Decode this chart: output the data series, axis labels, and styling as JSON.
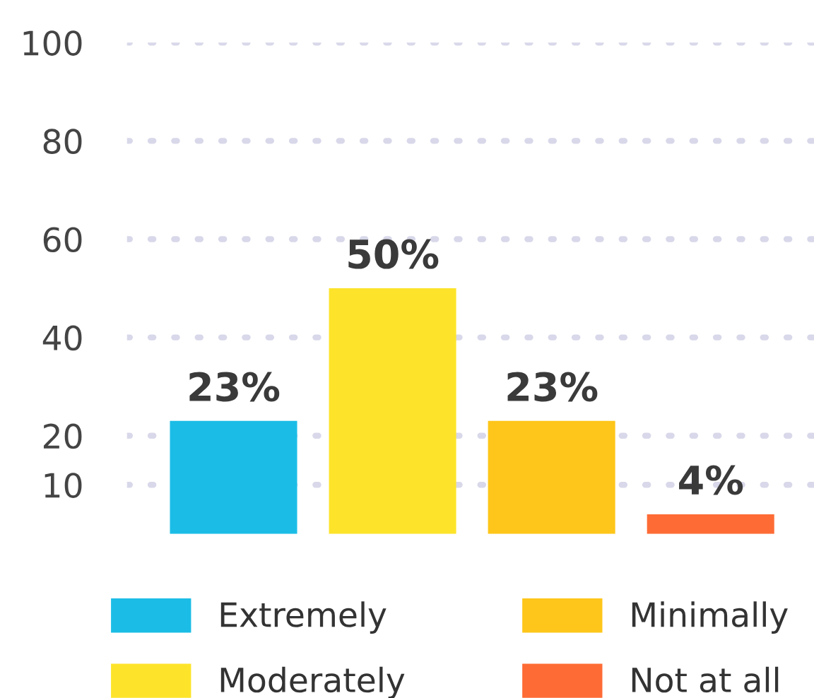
{
  "chart_data": {
    "type": "bar",
    "categories": [
      null,
      null,
      null,
      null
    ],
    "series": [
      {
        "name": "Extremely",
        "color": "#1bbde6",
        "values": [
          23,
          null,
          null,
          null
        ],
        "value_labels": [
          "23%",
          null,
          null,
          null
        ]
      },
      {
        "name": "Moderately",
        "color": "#fde42a",
        "values": [
          null,
          50,
          null,
          null
        ],
        "value_labels": [
          null,
          "50%",
          null,
          null
        ]
      },
      {
        "name": "Minimally",
        "color": "#fec61a",
        "values": [
          null,
          null,
          23,
          null
        ],
        "value_labels": [
          null,
          null,
          "23%",
          null
        ]
      },
      {
        "name": "Not at all",
        "color": "#fe6b35",
        "values": [
          null,
          null,
          null,
          4
        ],
        "value_labels": [
          null,
          null,
          null,
          "4%"
        ]
      }
    ],
    "ylim": [
      0,
      100
    ],
    "yticks": [
      10,
      20,
      40,
      60,
      80,
      100
    ],
    "grid": "y",
    "legend": "bottom",
    "tick_labels": "y"
  }
}
